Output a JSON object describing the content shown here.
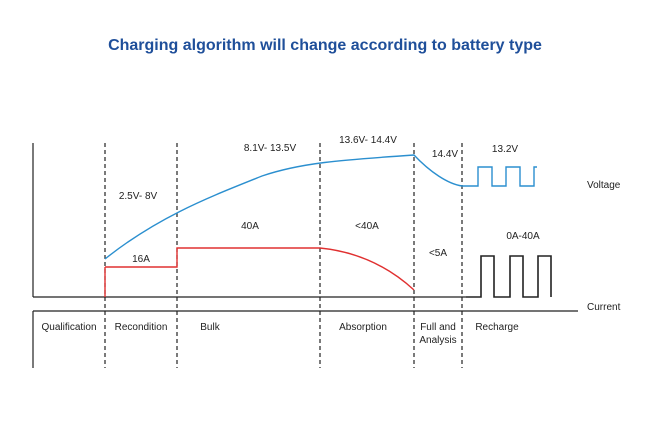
{
  "title": "Charging algorithm will change according to battery type",
  "colors": {
    "title": "#1f4f9a",
    "voltage": "#2b8fcf",
    "current": "#e03030",
    "axis": "#222222"
  },
  "axis_labels": {
    "voltage": "Voltage",
    "current": "Current"
  },
  "voltage_labels": {
    "recondition": "2.5V- 8V",
    "bulk": "8.1V- 13.5V",
    "absorption": "13.6V- 14.4V",
    "full": "14.4V",
    "recharge": "13.2V"
  },
  "current_labels": {
    "recondition": "16A",
    "bulk": "40A",
    "absorption": "<40A",
    "full": "<5A",
    "recharge": "0A-40A"
  },
  "phases": [
    {
      "label": "Qualification"
    },
    {
      "label": "Recondition"
    },
    {
      "label": "Bulk"
    },
    {
      "label": "Absorption"
    },
    {
      "label": "Full and",
      "label2": "Analysis"
    },
    {
      "label": "Recharge"
    }
  ]
}
